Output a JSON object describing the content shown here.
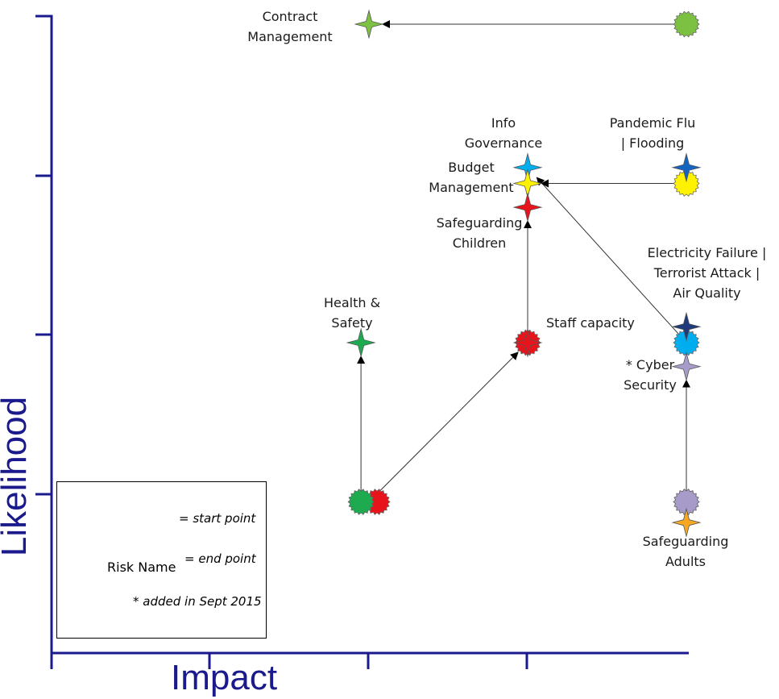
{
  "chart_data": {
    "type": "scatter",
    "title": "",
    "xlabel": "Impact",
    "ylabel": "Likelihood",
    "xlim": [
      0,
      4
    ],
    "ylim": [
      1,
      5
    ],
    "grid": false,
    "colors": {
      "axis": "#1a1a8c",
      "arrow": "#333333"
    },
    "risks": [
      {
        "key": "contract",
        "name": "Contract Management",
        "color": "#7dc142",
        "start": [
          4.0,
          5.0
        ],
        "end": [
          2.0,
          5.0
        ]
      },
      {
        "key": "pandemic",
        "name": "Pandemic Flu | Flooding",
        "color": "#fff200",
        "end_color": "#1565c0",
        "start": [
          4.0,
          4.0
        ],
        "end": [
          4.0,
          4.1
        ]
      },
      {
        "key": "info",
        "name": "Info Governance",
        "color": "#00aeef",
        "start": [
          4.0,
          3.0
        ],
        "end": [
          3.0,
          4.1
        ]
      },
      {
        "key": "budget",
        "name": "Budget Management",
        "color": "#fff200",
        "start": [
          4.0,
          4.0
        ],
        "end": [
          3.0,
          4.0
        ]
      },
      {
        "key": "children",
        "name": "Safeguarding Children",
        "color": "#e8141b",
        "start": [
          3.0,
          3.0
        ],
        "end": [
          3.0,
          3.85
        ]
      },
      {
        "key": "staff",
        "name": "Staff capacity",
        "color": "#e8141b",
        "start": [
          2.0,
          2.0
        ],
        "end": [
          3.0,
          3.0
        ]
      },
      {
        "key": "health",
        "name": "Health & Safety",
        "color": "#1eaa4e",
        "start": [
          1.95,
          2.0
        ],
        "end": [
          1.95,
          3.0
        ]
      },
      {
        "key": "electric",
        "name": "Electricity Failure | Terrorist Attack | Air Quality",
        "color": "#00aeef",
        "end_color": "#1f3a7a",
        "start": [
          4.0,
          3.0
        ],
        "end": [
          4.0,
          3.1
        ]
      },
      {
        "key": "cyber",
        "name": "* Cyber Security",
        "color": "#a79cc9",
        "start": [
          4.0,
          2.0
        ],
        "end": [
          4.0,
          2.85
        ]
      },
      {
        "key": "adults",
        "name": "Safeguarding Adults",
        "color": "#f7a823",
        "start_color": "#a79cc9",
        "start": [
          4.0,
          2.0
        ],
        "end": [
          4.0,
          1.87
        ]
      }
    ],
    "labels": {
      "contract": [
        "Contract",
        "Management"
      ],
      "info": [
        "Info",
        "Governance"
      ],
      "pandemic": [
        "Pandemic Flu",
        "| Flooding"
      ],
      "budget": [
        "Budget",
        "Management"
      ],
      "children": [
        "Safeguarding",
        "Children"
      ],
      "electric": [
        "Electricity Failure |",
        "Terrorist Attack |",
        "Air Quality"
      ],
      "health": [
        "Health &",
        "Safety"
      ],
      "staff": [
        "Staff capacity"
      ],
      "cyber": [
        "* Cyber",
        "Security"
      ],
      "adults": [
        "Safeguarding",
        "Adults"
      ]
    },
    "legend": {
      "start_label": "= start point",
      "risk_name": "Risk Name",
      "end_label": "= end point",
      "note": "* added in Sept 2015"
    }
  }
}
